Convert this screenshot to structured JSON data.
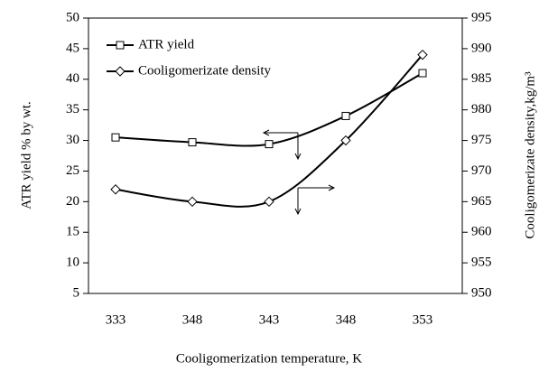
{
  "chart_data": {
    "type": "line",
    "x_label": "Cooligomerization temperature, K",
    "y_label": "ATR yield % by wt.",
    "y2_label": "Cooligomerizate density,kg/m³",
    "categories": [
      "333",
      "348",
      "343",
      "348",
      "353"
    ],
    "series": [
      {
        "name": "ATR yield",
        "color": "#000000",
        "marker": "square",
        "values": [
          30.5,
          29.7,
          29.4,
          34,
          41
        ]
      },
      {
        "name": "Cooligomerizate density",
        "color": "#000000",
        "marker": "diamond",
        "axis": "y2",
        "values": [
          967,
          965,
          965,
          975,
          989
        ]
      }
    ],
    "ylim": [
      5,
      50
    ],
    "yticks": [
      5,
      10,
      15,
      20,
      25,
      30,
      35,
      40,
      45,
      50
    ],
    "y2lim": [
      950,
      995
    ],
    "y2ticks": [
      950,
      955,
      960,
      965,
      970,
      975,
      980,
      985,
      990,
      995
    ],
    "grid": false,
    "legend": "upper left"
  }
}
